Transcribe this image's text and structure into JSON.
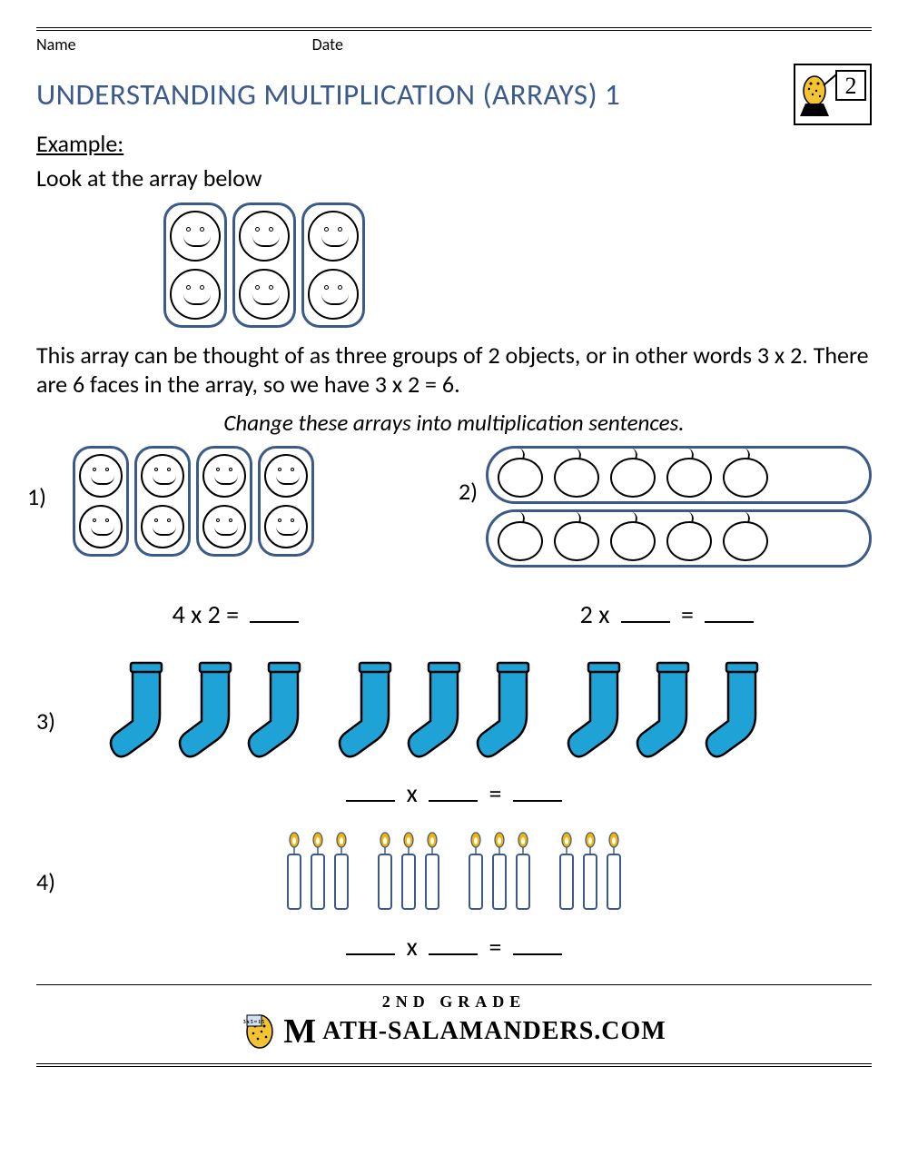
{
  "header": {
    "name_label": "Name",
    "date_label": "Date"
  },
  "title": "UNDERSTANDING MULTIPLICATION (ARRAYS) 1",
  "badge": {
    "grade_number": "2"
  },
  "example": {
    "label": "Example:",
    "intro": "Look at the array below",
    "columns": 3,
    "per_column": 2,
    "explanation": "This array can be thought of as three groups of 2 objects, or in other words 3 x 2. There are 6 faces in the array, so we have 3 x 2 = 6."
  },
  "instruction": "Change these arrays into multiplication sentences.",
  "q1": {
    "num": "1)",
    "columns": 4,
    "per_column": 2,
    "equation_prefix": "4 x 2 ="
  },
  "q2": {
    "num": "2)",
    "rows": 2,
    "per_row": 5,
    "equation_prefix": "2 x"
  },
  "q3": {
    "num": "3)",
    "groups": 3,
    "per_group": 3,
    "sock_fill": "#1fa3d6",
    "sock_stroke": "#000000"
  },
  "q4": {
    "num": "4)",
    "groups": 4,
    "per_group": 3,
    "candle_stroke": "#3b5a8a",
    "flame_fill": "#f5b400"
  },
  "equations": {
    "x": "x",
    "eq": "="
  },
  "footer": {
    "grade_line": "2ND GRADE",
    "site": "ATH-SALAMANDERS.COM"
  },
  "colors": {
    "title": "#3b5a8a",
    "group_border": "#3b5a8a"
  }
}
